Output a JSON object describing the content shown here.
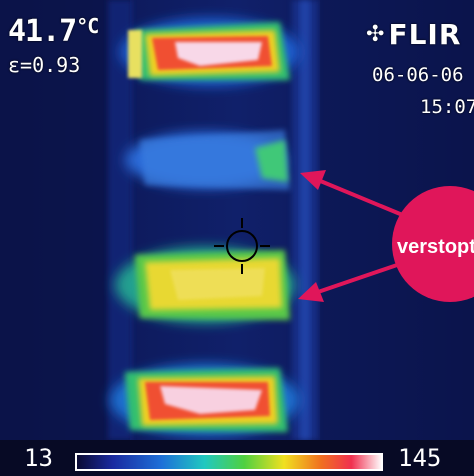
{
  "osd": {
    "temperature": "41.7",
    "temperature_unit": "°C",
    "emissivity": "ε=0.93",
    "brand": "FLIR",
    "date": "06-06-06",
    "time": "15:07"
  },
  "scale": {
    "min": "13",
    "max": "145"
  },
  "annotation": {
    "label": "verstopt",
    "color": "#e0165a"
  },
  "icons": {
    "logo": "flir-logo-icon",
    "crosshair": "crosshair-icon"
  }
}
